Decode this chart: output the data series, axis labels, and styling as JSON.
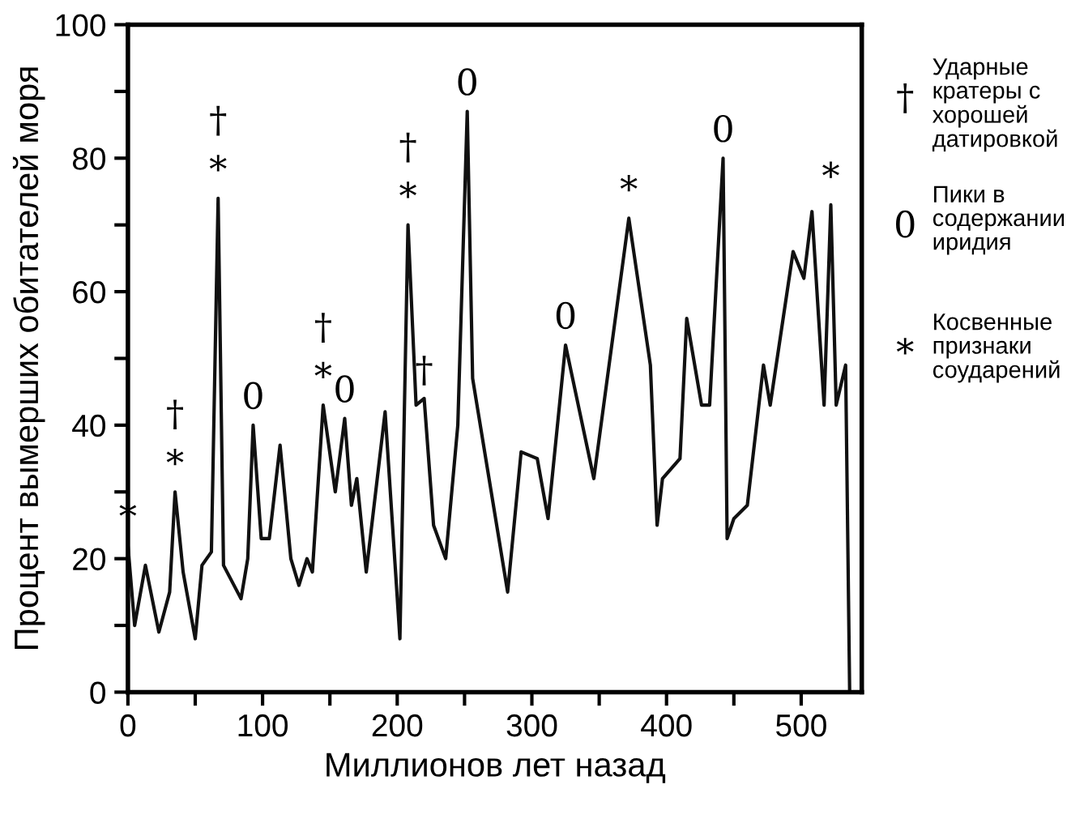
{
  "chart_data": {
    "type": "line",
    "xlabel": "Миллионов лет назад",
    "ylabel": "Процент вымерших обитателей моря",
    "series": [
      {
        "color": "#111111",
        "x": [
          0,
          5,
          13,
          23,
          31,
          35,
          41,
          50,
          55,
          62,
          67,
          71,
          84,
          89,
          93,
          99,
          105,
          113,
          121,
          127,
          133,
          137,
          145,
          154,
          161,
          166,
          170,
          177,
          191,
          202,
          208,
          214,
          220,
          227,
          236,
          245,
          252,
          256,
          282,
          292,
          304,
          312,
          325,
          346,
          372,
          388,
          393,
          397,
          410,
          415,
          426,
          432,
          442,
          445,
          450,
          460,
          472,
          477,
          494,
          502,
          508,
          517,
          522,
          526,
          533,
          536
        ],
        "values": [
          22,
          10,
          19,
          9,
          15,
          30,
          18,
          8,
          19,
          21,
          74,
          19,
          14,
          20,
          40,
          23,
          23,
          37,
          20,
          16,
          20,
          18,
          43,
          30,
          41,
          28,
          32,
          18,
          42,
          8,
          70,
          43,
          44,
          25,
          20,
          40,
          87,
          47,
          15,
          36,
          35,
          26,
          52,
          32,
          71,
          49,
          25,
          32,
          35,
          56,
          43,
          43,
          80,
          23,
          26,
          28,
          49,
          43,
          66,
          62,
          72,
          43,
          73,
          43,
          49,
          0
        ]
      }
    ],
    "xlim": [
      0,
      545
    ],
    "ylim": [
      0,
      100
    ],
    "xticks": [
      0,
      {
        "value": 50,
        "label": null
      },
      100,
      {
        "value": 150,
        "label": null
      },
      200,
      {
        "value": 250,
        "label": null
      },
      300,
      {
        "value": 350,
        "label": null
      },
      400,
      {
        "value": 450,
        "label": null
      },
      500
    ],
    "yticks": [
      0,
      {
        "value": 10,
        "label": null
      },
      20,
      {
        "value": 30,
        "label": null
      },
      40,
      {
        "value": 50,
        "label": null
      },
      60,
      {
        "value": 70,
        "label": null
      },
      80,
      {
        "value": 90,
        "label": null
      },
      100
    ],
    "grid": false,
    "marker": "none",
    "line_style": "solid",
    "annotations": [
      {
        "text": "*",
        "x": 0,
        "y": 22
      },
      {
        "text": "*",
        "x": 35,
        "y": 30
      },
      {
        "text": "†",
        "x": 35,
        "y": 30
      },
      {
        "text": "*",
        "x": 67,
        "y": 74
      },
      {
        "text": "†",
        "x": 67,
        "y": 74
      },
      {
        "text": "0",
        "x": 93,
        "y": 40
      },
      {
        "text": "*",
        "x": 145,
        "y": 43
      },
      {
        "text": "†",
        "x": 145,
        "y": 43
      },
      {
        "text": "0",
        "x": 161,
        "y": 41
      },
      {
        "text": "*",
        "x": 208,
        "y": 70
      },
      {
        "text": "†",
        "x": 208,
        "y": 70
      },
      {
        "text": "†",
        "x": 220,
        "y": 44
      },
      {
        "text": "0",
        "x": 252,
        "y": 87
      },
      {
        "text": "0",
        "x": 325,
        "y": 52
      },
      {
        "text": "*",
        "x": 372,
        "y": 71
      },
      {
        "text": "0",
        "x": 442,
        "y": 80
      },
      {
        "text": "*",
        "x": 522,
        "y": 73
      },
      "†",
      "Ударные\nкратеры с\nхорошей\nдатировкой",
      "0",
      "Пики в\nсодержании\nиридия",
      "*",
      "Косвенные\nпризнаки\nсоударений"
    ]
  }
}
